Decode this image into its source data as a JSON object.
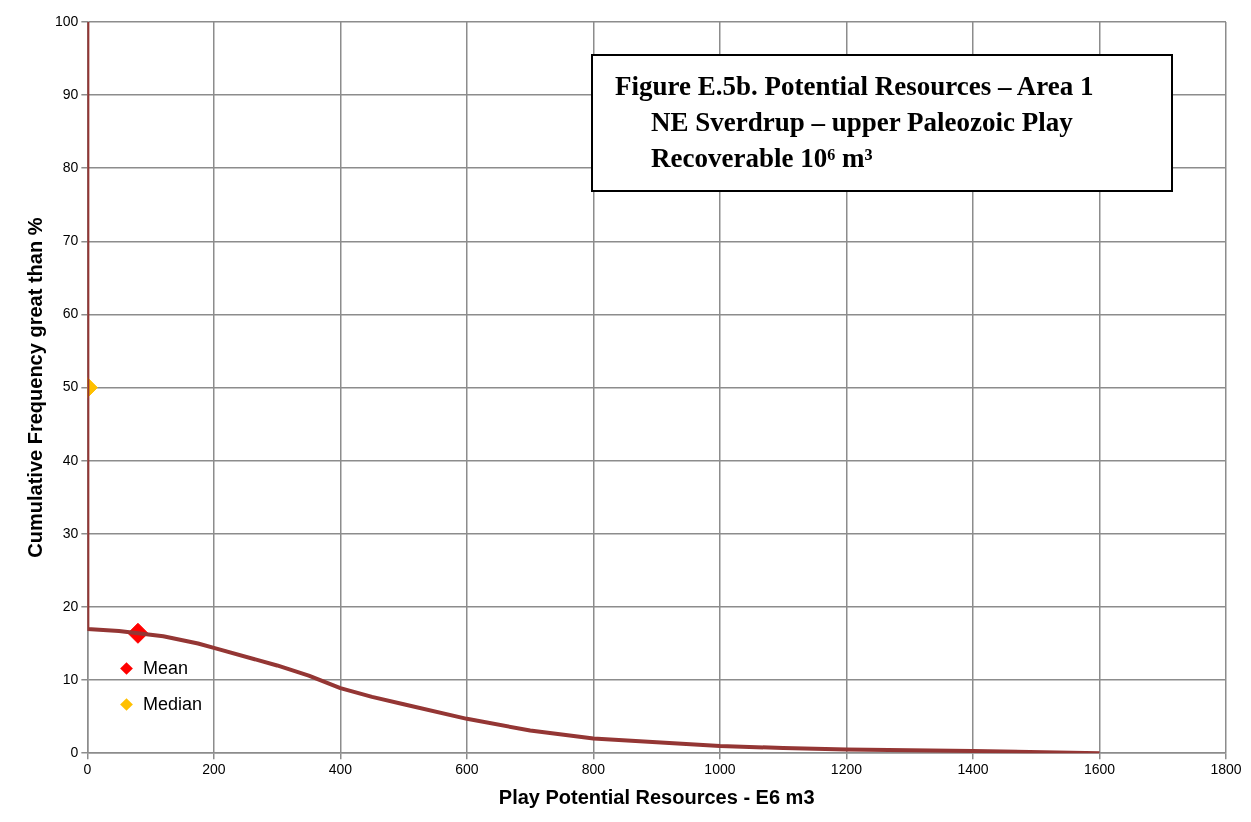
{
  "chart_data": {
    "type": "line",
    "title": "Figure E.5b.  Potential Resources – Area 1",
    "subtitle": "NE Sverdrup – upper Paleozoic Play\nRecoverable 10⁶ m³",
    "xlabel": "Play Potential Resources - E6 m3",
    "ylabel": "Cumulative Frequency great than %",
    "series": [
      {
        "type": "line",
        "color": "#943634",
        "x": [
          0,
          0,
          50,
          100,
          120,
          175,
          200,
          300,
          350,
          400,
          450,
          500,
          600,
          700,
          800,
          900,
          1000,
          1100,
          1200,
          1400,
          1600
        ],
        "values": [
          100,
          17,
          16.7,
          16.2,
          16.0,
          15.0,
          14.4,
          12.0,
          10.6,
          8.9,
          7.7,
          6.7,
          4.7,
          3.1,
          2.0,
          1.5,
          1.0,
          0.7,
          0.5,
          0.3,
          0
        ]
      },
      {
        "type": "scatter",
        "name": "Mean",
        "color": "#ff0000",
        "marker": "diamond",
        "x": [
          80
        ],
        "values": [
          16.4
        ]
      },
      {
        "type": "scatter",
        "name": "Median",
        "color": "#ffc000",
        "marker": "diamond",
        "x": [
          0
        ],
        "values": [
          50
        ]
      }
    ],
    "xlim": [
      0,
      1800
    ],
    "xticks": [
      0,
      200,
      400,
      600,
      800,
      1000,
      1200,
      1400,
      1600,
      1800
    ],
    "ylim": [
      0,
      100
    ],
    "yticks": [
      0,
      10,
      20,
      30,
      40,
      50,
      60,
      70,
      80,
      90,
      100
    ],
    "grid": true,
    "legend": "bottom left"
  }
}
